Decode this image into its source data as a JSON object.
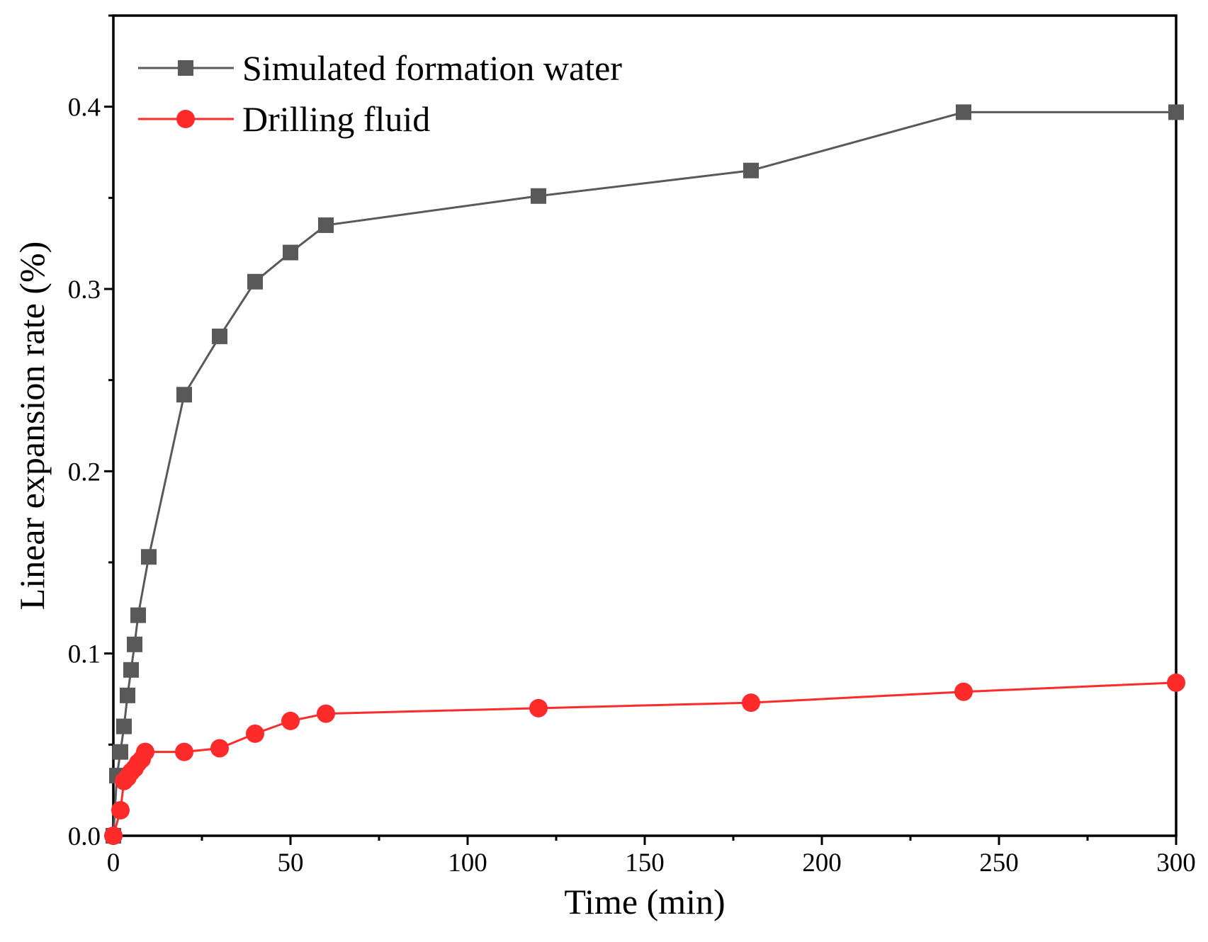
{
  "chart_data": {
    "type": "line",
    "title": "",
    "xlabel": "Time (min)",
    "ylabel": "Linear expansion rate (%)",
    "xlim": [
      0,
      300
    ],
    "ylim": [
      0,
      0.45
    ],
    "xticks": [
      0,
      50,
      100,
      150,
      200,
      250,
      300
    ],
    "xtick_labels": [
      "0",
      "50",
      "100",
      "150",
      "200",
      "250",
      "300"
    ],
    "yticks": [
      0.0,
      0.1,
      0.2,
      0.3,
      0.4
    ],
    "ytick_labels": [
      "0.0",
      "0.1",
      "0.2",
      "0.3",
      "0.4"
    ],
    "x_minor_step": 25,
    "y_minor_step": 0.05,
    "grid": false,
    "legend_position": "top-left",
    "series": [
      {
        "name": "Simulated formation water",
        "color": "#595959",
        "marker": "square",
        "x": [
          0,
          1,
          2,
          3,
          4,
          5,
          6,
          7,
          10,
          20,
          30,
          40,
          50,
          60,
          120,
          180,
          240,
          300
        ],
        "y": [
          0.0,
          0.033,
          0.046,
          0.06,
          0.077,
          0.091,
          0.105,
          0.121,
          0.153,
          0.242,
          0.274,
          0.304,
          0.32,
          0.335,
          0.351,
          0.365,
          0.397,
          0.397
        ]
      },
      {
        "name": "Drilling fluid",
        "color": "#ff2a2a",
        "marker": "circle",
        "x": [
          0,
          2,
          3,
          4,
          5,
          6,
          7,
          8,
          9,
          20,
          30,
          40,
          50,
          60,
          120,
          180,
          240,
          300
        ],
        "y": [
          0.0,
          0.014,
          0.03,
          0.032,
          0.035,
          0.037,
          0.04,
          0.042,
          0.046,
          0.046,
          0.048,
          0.056,
          0.063,
          0.067,
          0.07,
          0.073,
          0.079,
          0.084
        ]
      }
    ]
  }
}
